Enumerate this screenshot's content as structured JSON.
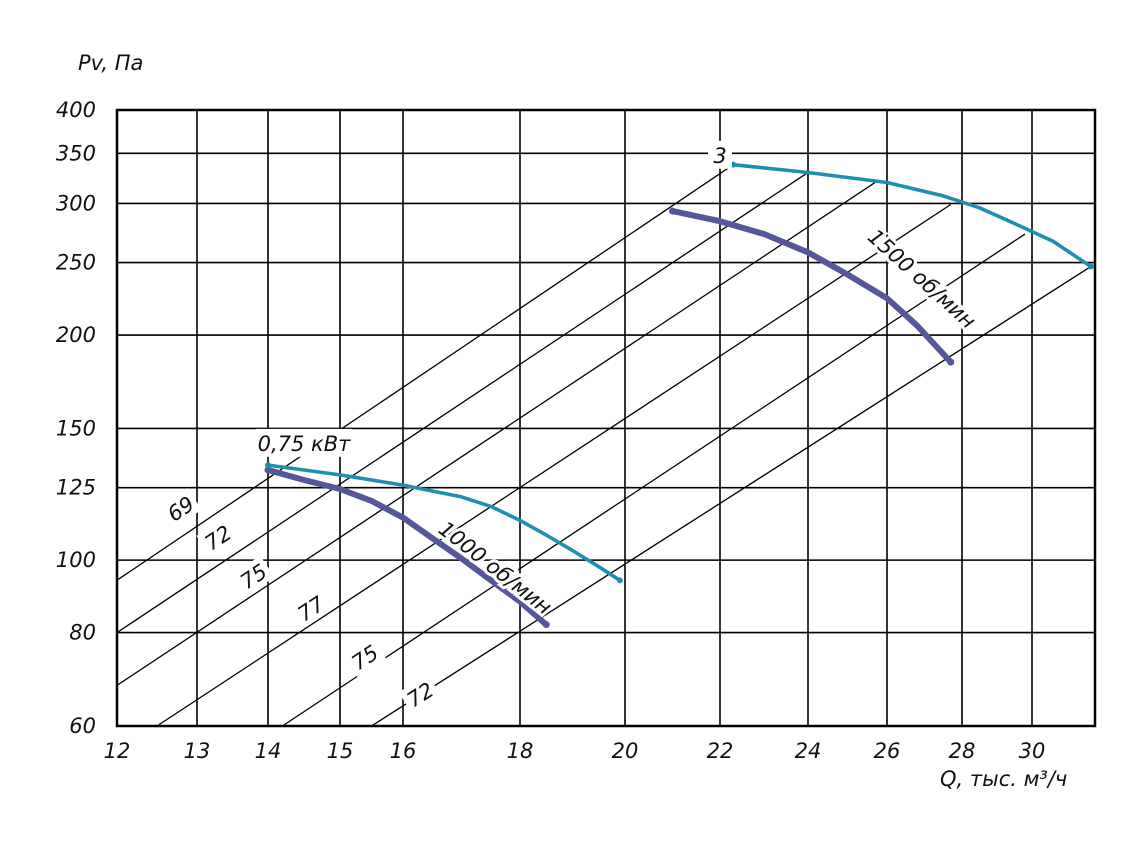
{
  "chart_data": {
    "type": "line",
    "xlabel": "Q, тыс. м³/ч",
    "ylabel": "Pv, Па",
    "x_ticks": [
      "12",
      "13",
      "14",
      "15",
      "16",
      "18",
      "20",
      "22",
      "24",
      "26",
      "28",
      "30"
    ],
    "y_ticks": [
      "60",
      "80",
      "100",
      "125",
      "150",
      "200",
      "250",
      "300",
      "350",
      "400"
    ],
    "grid": true,
    "series": [
      {
        "name": "1000 об/мин",
        "color": "#55579a",
        "points": [
          [
            14.0,
            132
          ],
          [
            14.5,
            128
          ],
          [
            15.0,
            124.5
          ],
          [
            15.5,
            120
          ],
          [
            16.0,
            114
          ],
          [
            16.5,
            107
          ],
          [
            17.0,
            100.5
          ],
          [
            17.5,
            94
          ],
          [
            18.0,
            88
          ],
          [
            18.5,
            82
          ]
        ]
      },
      {
        "name": "0,75 кВт",
        "color": "#1f8fb0",
        "points": [
          [
            14.0,
            134
          ],
          [
            15.0,
            130
          ],
          [
            16.0,
            126
          ],
          [
            17.0,
            121.5
          ],
          [
            17.5,
            118
          ],
          [
            18.0,
            113
          ],
          [
            18.5,
            108
          ],
          [
            19.0,
            103
          ],
          [
            19.5,
            98
          ],
          [
            19.9,
            94
          ]
        ]
      },
      {
        "name": "1500 об/мин",
        "color": "#55579a",
        "points": [
          [
            21.0,
            293
          ],
          [
            22.0,
            284
          ],
          [
            23.0,
            273
          ],
          [
            24.0,
            258
          ],
          [
            25.0,
            241
          ],
          [
            26.0,
            224
          ],
          [
            26.8,
            206
          ],
          [
            27.7,
            184
          ]
        ]
      },
      {
        "name": "3",
        "color": "#1f8fb0",
        "points": [
          [
            22.3,
            338
          ],
          [
            24.0,
            330
          ],
          [
            26.0,
            320
          ],
          [
            27.5,
            307
          ],
          [
            28.5,
            296
          ],
          [
            29.5,
            282
          ],
          [
            30.5,
            267
          ],
          [
            31.4,
            247
          ]
        ]
      }
    ],
    "efficiency_lines": [
      {
        "label": "69",
        "start": [
          12,
          94
        ],
        "end": [
          22.3,
          338
        ]
      },
      {
        "label": "72",
        "start": [
          12,
          80
        ],
        "end": [
          24,
          330
        ]
      },
      {
        "label": "75",
        "start": [
          12,
          68
        ],
        "end": [
          25.7,
          320
        ]
      },
      {
        "label": "77",
        "start": [
          12.5,
          60
        ],
        "end": [
          27.7,
          299
        ]
      },
      {
        "label": "75",
        "start": [
          14.2,
          60
        ],
        "end": [
          29.8,
          273
        ]
      },
      {
        "label": "72",
        "start": [
          15.5,
          60
        ],
        "end": [
          31.4,
          247
        ]
      }
    ],
    "annotations": [
      {
        "text": "0,75 кВт",
        "at": [
          14.5,
          140
        ]
      },
      {
        "text": "3",
        "at": [
          22.0,
          340
        ]
      },
      {
        "text": "1000 об/мин",
        "at": [
          17.5,
          96
        ]
      },
      {
        "text": "1500 об/мин",
        "at": [
          26.8,
          234
        ]
      }
    ],
    "eff_label_positions": [
      [
        12.8,
        117
      ],
      [
        13.3,
        107
      ],
      [
        13.8,
        95
      ],
      [
        14.6,
        86
      ],
      [
        15.4,
        74
      ],
      [
        16.3,
        66
      ]
    ]
  }
}
